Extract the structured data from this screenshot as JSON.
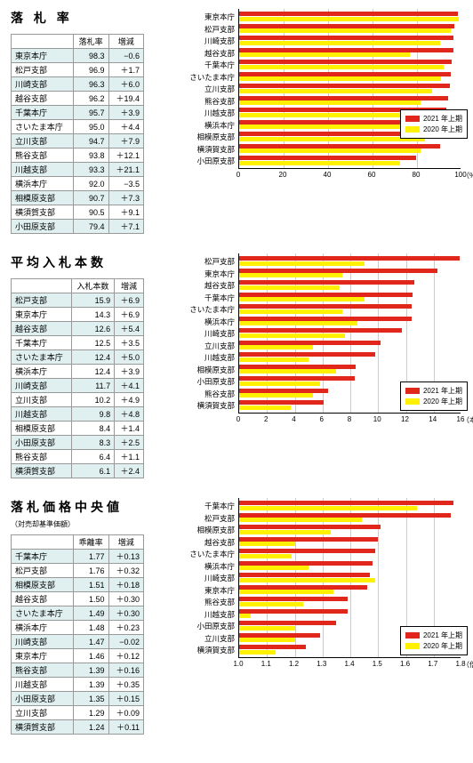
{
  "colors": {
    "red": "#e1261c",
    "yellow": "#fff100",
    "alt_row": "#e0f0f0",
    "grid": "#cccccc"
  },
  "legend": {
    "series1": "2021 年上期",
    "series2": "2020 年上期"
  },
  "sections": [
    {
      "title": "落 札 率",
      "table": {
        "headers": [
          "",
          "落札率",
          "増減"
        ],
        "rows": [
          [
            "東京本庁",
            "98.3",
            "−0.6"
          ],
          [
            "松戸支部",
            "96.9",
            "＋1.7"
          ],
          [
            "川崎支部",
            "96.3",
            "＋6.0"
          ],
          [
            "越谷支部",
            "96.2",
            "＋19.4"
          ],
          [
            "千葉本庁",
            "95.7",
            "＋3.9"
          ],
          [
            "さいたま本庁",
            "95.0",
            "＋4.4"
          ],
          [
            "立川支部",
            "94.7",
            "＋7.9"
          ],
          [
            "熊谷支部",
            "93.8",
            "＋12.1"
          ],
          [
            "川越支部",
            "93.3",
            "＋21.1"
          ],
          [
            "横浜本庁",
            "92.0",
            "−3.5"
          ],
          [
            "相模原支部",
            "90.7",
            "＋7.3"
          ],
          [
            "横須賀支部",
            "90.5",
            "＋9.1"
          ],
          [
            "小田原支部",
            "79.4",
            "＋7.1"
          ]
        ]
      },
      "chart": {
        "xmin": 0,
        "xmax": 100,
        "xtick_step": 20,
        "unit": "（%）",
        "legend_pos": "mid",
        "bars": [
          {
            "label": "東京本庁",
            "v1": 98.3,
            "v2": 98.9
          },
          {
            "label": "松戸支部",
            "v1": 96.9,
            "v2": 95.2
          },
          {
            "label": "川崎支部",
            "v1": 96.3,
            "v2": 90.3
          },
          {
            "label": "越谷支部",
            "v1": 96.2,
            "v2": 76.8
          },
          {
            "label": "千葉本庁",
            "v1": 95.7,
            "v2": 91.8
          },
          {
            "label": "さいたま本庁",
            "v1": 95.0,
            "v2": 90.6
          },
          {
            "label": "立川支部",
            "v1": 94.7,
            "v2": 86.8
          },
          {
            "label": "熊谷支部",
            "v1": 93.8,
            "v2": 81.7
          },
          {
            "label": "川越支部",
            "v1": 93.3,
            "v2": 72.2
          },
          {
            "label": "横浜本庁",
            "v1": 92.0,
            "v2": 95.5
          },
          {
            "label": "相模原支部",
            "v1": 90.7,
            "v2": 83.4
          },
          {
            "label": "横須賀支部",
            "v1": 90.5,
            "v2": 81.4
          },
          {
            "label": "小田原支部",
            "v1": 79.4,
            "v2": 72.3
          }
        ]
      }
    },
    {
      "title": "平均入札本数",
      "table": {
        "headers": [
          "",
          "入札本数",
          "増減"
        ],
        "rows": [
          [
            "松戸支部",
            "15.9",
            "＋6.9"
          ],
          [
            "東京本庁",
            "14.3",
            "＋6.9"
          ],
          [
            "越谷支部",
            "12.6",
            "＋5.4"
          ],
          [
            "千葉本庁",
            "12.5",
            "＋3.5"
          ],
          [
            "さいたま本庁",
            "12.4",
            "＋5.0"
          ],
          [
            "横浜本庁",
            "12.4",
            "＋3.9"
          ],
          [
            "川崎支部",
            "11.7",
            "＋4.1"
          ],
          [
            "立川支部",
            "10.2",
            "＋4.9"
          ],
          [
            "川越支部",
            "9.8",
            "＋4.8"
          ],
          [
            "相模原支部",
            "8.4",
            "＋1.4"
          ],
          [
            "小田原支部",
            "8.3",
            "＋2.5"
          ],
          [
            "熊谷支部",
            "6.4",
            "＋1.1"
          ],
          [
            "横須賀支部",
            "6.1",
            "＋2.4"
          ]
        ]
      },
      "chart": {
        "xmin": 0,
        "xmax": 16,
        "xtick_step": 2,
        "unit": "（本）",
        "legend_pos": "bottom",
        "bars": [
          {
            "label": "松戸支部",
            "v1": 15.9,
            "v2": 9.0
          },
          {
            "label": "東京本庁",
            "v1": 14.3,
            "v2": 7.4
          },
          {
            "label": "越谷支部",
            "v1": 12.6,
            "v2": 7.2
          },
          {
            "label": "千葉本庁",
            "v1": 12.5,
            "v2": 9.0
          },
          {
            "label": "さいたま本庁",
            "v1": 12.4,
            "v2": 7.4
          },
          {
            "label": "横浜本庁",
            "v1": 12.4,
            "v2": 8.5
          },
          {
            "label": "川崎支部",
            "v1": 11.7,
            "v2": 7.6
          },
          {
            "label": "立川支部",
            "v1": 10.2,
            "v2": 5.3
          },
          {
            "label": "川越支部",
            "v1": 9.8,
            "v2": 5.0
          },
          {
            "label": "相模原支部",
            "v1": 8.4,
            "v2": 7.0
          },
          {
            "label": "小田原支部",
            "v1": 8.3,
            "v2": 5.8
          },
          {
            "label": "熊谷支部",
            "v1": 6.4,
            "v2": 5.3
          },
          {
            "label": "横須賀支部",
            "v1": 6.1,
            "v2": 3.7
          }
        ]
      }
    },
    {
      "title": "落札価格中央値",
      "subtitle": "（対売却基準価額）",
      "table": {
        "headers": [
          "",
          "乖離率",
          "増減"
        ],
        "rows": [
          [
            "千葉本庁",
            "1.77",
            "＋0.13"
          ],
          [
            "松戸支部",
            "1.76",
            "＋0.32"
          ],
          [
            "相模原支部",
            "1.51",
            "＋0.18"
          ],
          [
            "越谷支部",
            "1.50",
            "＋0.30"
          ],
          [
            "さいたま本庁",
            "1.49",
            "＋0.30"
          ],
          [
            "横浜本庁",
            "1.48",
            "＋0.23"
          ],
          [
            "川崎支部",
            "1.47",
            "−0.02"
          ],
          [
            "東京本庁",
            "1.46",
            "＋0.12"
          ],
          [
            "熊谷支部",
            "1.39",
            "＋0.16"
          ],
          [
            "川越支部",
            "1.39",
            "＋0.35"
          ],
          [
            "小田原支部",
            "1.35",
            "＋0.15"
          ],
          [
            "立川支部",
            "1.29",
            "＋0.09"
          ],
          [
            "横須賀支部",
            "1.24",
            "＋0.11"
          ]
        ]
      },
      "chart": {
        "xmin": 1.0,
        "xmax": 1.8,
        "xtick_step": 0.1,
        "unit": "（倍）",
        "legend_pos": "bottom",
        "bars": [
          {
            "label": "千葉本庁",
            "v1": 1.77,
            "v2": 1.64
          },
          {
            "label": "松戸支部",
            "v1": 1.76,
            "v2": 1.44
          },
          {
            "label": "相模原支部",
            "v1": 1.51,
            "v2": 1.33
          },
          {
            "label": "越谷支部",
            "v1": 1.5,
            "v2": 1.2
          },
          {
            "label": "さいたま本庁",
            "v1": 1.49,
            "v2": 1.19
          },
          {
            "label": "横浜本庁",
            "v1": 1.48,
            "v2": 1.25
          },
          {
            "label": "川崎支部",
            "v1": 1.47,
            "v2": 1.49
          },
          {
            "label": "東京本庁",
            "v1": 1.46,
            "v2": 1.34
          },
          {
            "label": "熊谷支部",
            "v1": 1.39,
            "v2": 1.23
          },
          {
            "label": "川越支部",
            "v1": 1.39,
            "v2": 1.04
          },
          {
            "label": "小田原支部",
            "v1": 1.35,
            "v2": 1.2
          },
          {
            "label": "立川支部",
            "v1": 1.29,
            "v2": 1.2
          },
          {
            "label": "横須賀支部",
            "v1": 1.24,
            "v2": 1.13
          }
        ]
      }
    }
  ]
}
